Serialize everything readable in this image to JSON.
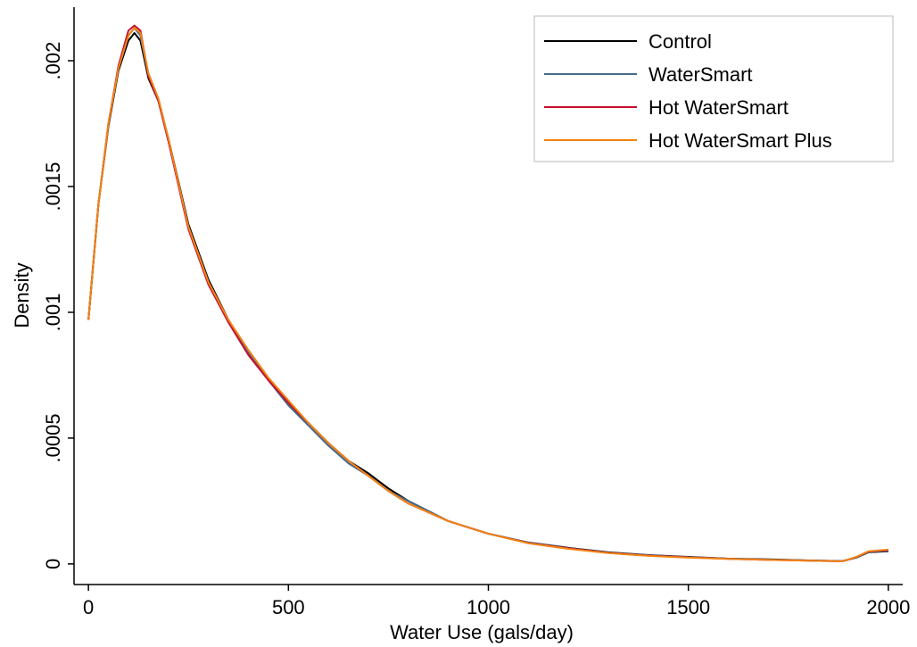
{
  "chart_data": {
    "type": "line",
    "xlabel": "Water Use (gals/day)",
    "ylabel": "Density",
    "x": [
      0,
      25,
      50,
      75,
      100,
      115,
      130,
      150,
      175,
      200,
      250,
      300,
      350,
      400,
      450,
      500,
      550,
      600,
      650,
      700,
      750,
      800,
      900,
      1000,
      1100,
      1200,
      1300,
      1400,
      1500,
      1600,
      1700,
      1800,
      1885,
      1920,
      1950,
      2000
    ],
    "series": [
      {
        "name": "Control",
        "color": "#000000",
        "values": [
          0.00097,
          0.00143,
          0.00174,
          0.00196,
          0.00208,
          0.00211,
          0.00208,
          0.00193,
          0.00184,
          0.00169,
          0.00135,
          0.00113,
          0.00097,
          0.00084,
          0.00073,
          0.00064,
          0.00056,
          0.00048,
          0.00041,
          0.00036,
          0.0003,
          0.00025,
          0.00017,
          0.00012,
          8.5e-05,
          6.4e-05,
          4.6e-05,
          3.5e-05,
          2.8e-05,
          2.1e-05,
          1.8e-05,
          1.4e-05,
          1.1e-05,
          2.5e-05,
          4.6e-05,
          5e-05
        ]
      },
      {
        "name": "WaterSmart",
        "color": "#456a8c",
        "values": [
          0.00097,
          0.00143,
          0.00175,
          0.00197,
          0.0021,
          0.00213,
          0.0021,
          0.00194,
          0.00184,
          0.00168,
          0.00134,
          0.00112,
          0.00096,
          0.00084,
          0.00073,
          0.00063,
          0.00055,
          0.00047,
          0.0004,
          0.00035,
          0.00029,
          0.00025,
          0.00017,
          0.00012,
          8.5e-05,
          6.3e-05,
          4.5e-05,
          3.4e-05,
          2.7e-05,
          2.1e-05,
          1.7e-05,
          1.4e-05,
          1.1e-05,
          2.6e-05,
          4.7e-05,
          5.2e-05
        ]
      },
      {
        "name": "Hot WaterSmart",
        "color": "#c8102e",
        "values": [
          0.00097,
          0.00143,
          0.00175,
          0.00198,
          0.00212,
          0.00214,
          0.00212,
          0.00194,
          0.00184,
          0.00168,
          0.00133,
          0.00111,
          0.00096,
          0.00083,
          0.00073,
          0.00064,
          0.00056,
          0.00048,
          0.00041,
          0.00035,
          0.00029,
          0.00024,
          0.00017,
          0.00012,
          8.3e-05,
          6.2e-05,
          4.4e-05,
          3.3e-05,
          2.6e-05,
          2e-05,
          1.6e-05,
          1.3e-05,
          1e-05,
          2.7e-05,
          4.9e-05,
          5.5e-05
        ]
      },
      {
        "name": "Hot WaterSmart Plus",
        "color": "#f28313",
        "values": [
          0.00097,
          0.00143,
          0.00175,
          0.00197,
          0.0021,
          0.00213,
          0.00211,
          0.00195,
          0.00185,
          0.00169,
          0.00134,
          0.00112,
          0.00097,
          0.00085,
          0.00074,
          0.00065,
          0.00056,
          0.00048,
          0.00041,
          0.00035,
          0.00029,
          0.00024,
          0.00017,
          0.00012,
          8.2e-05,
          6e-05,
          4.3e-05,
          3.2e-05,
          2.5e-05,
          2e-05,
          1.6e-05,
          1.3e-05,
          1e-05,
          2.8e-05,
          5e-05,
          5.7e-05
        ]
      }
    ],
    "xlim": [
      -36,
      2036
    ],
    "ylim": [
      -8.2e-05,
      0.002213
    ],
    "xticks": [
      0,
      500,
      1000,
      1500,
      2000
    ],
    "yticks": [
      0,
      {
        "value": 0.0005,
        "label": ".0005"
      },
      {
        "value": 0.001,
        "label": ".001"
      },
      {
        "value": 0.0015,
        "label": ".0015"
      },
      {
        "value": 0.002,
        "label": ".002"
      }
    ],
    "legend": "top-right"
  }
}
